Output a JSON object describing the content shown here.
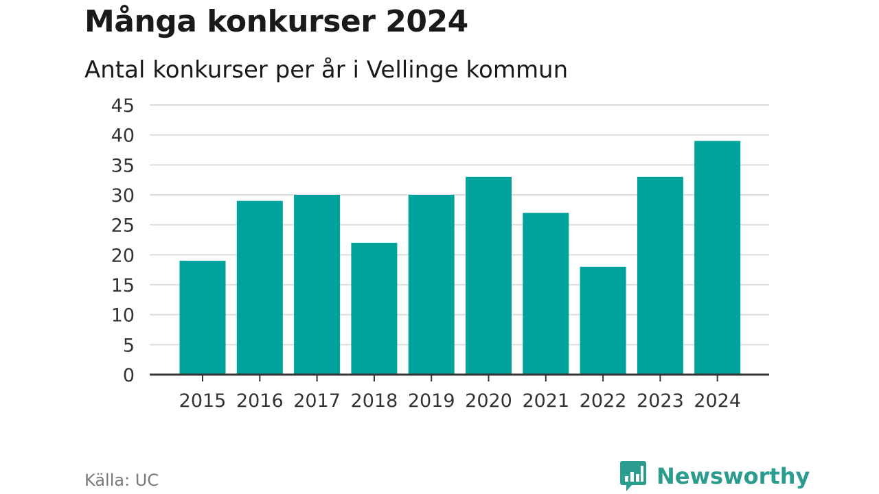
{
  "title": "Många konkurser 2024",
  "subtitle": "Antal konkurser per år i Vellinge kommun",
  "source": "Källa: UC",
  "brand": {
    "name": "Newsworthy",
    "logo_icon": "bar-chart-speech-bubble-icon"
  },
  "colors": {
    "bar": "#00a39b",
    "grid": "#dddddd",
    "axis": "#333333",
    "text": "#333333",
    "brand": "#2a9d8f"
  },
  "chart_data": {
    "type": "bar",
    "title": "Många konkurser 2024",
    "subtitle": "Antal konkurser per år i Vellinge kommun",
    "xlabel": "",
    "ylabel": "",
    "categories": [
      "2015",
      "2016",
      "2017",
      "2018",
      "2019",
      "2020",
      "2021",
      "2022",
      "2023",
      "2024"
    ],
    "values": [
      19,
      29,
      30,
      22,
      30,
      33,
      27,
      18,
      33,
      39
    ],
    "ylim": [
      0,
      45
    ],
    "yticks": [
      0,
      5,
      10,
      15,
      20,
      25,
      30,
      35,
      40,
      45
    ],
    "grid": true,
    "legend": "none"
  }
}
